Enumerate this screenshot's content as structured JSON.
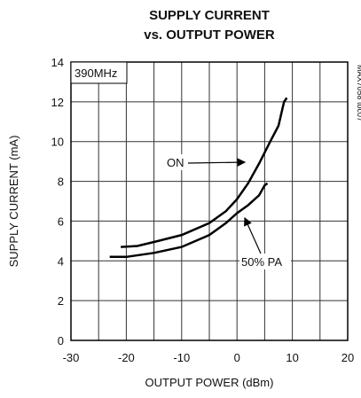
{
  "chart_data": {
    "type": "line",
    "title": "SUPPLY CURRENT",
    "subtitle": "vs. OUTPUT POWER",
    "x_label": "OUTPUT POWER (dBm)",
    "y_label": "SUPPLY CURRENT (mA)",
    "annotations": [
      "390MHz",
      "MAX7058 toc07"
    ],
    "series": [
      {
        "name": "ON",
        "color": "#000000",
        "x": [
          -21,
          -18,
          -15,
          -10,
          -5,
          -2,
          0,
          2,
          4,
          6,
          7.5,
          8.5,
          9
        ],
        "values": [
          4.7,
          4.75,
          4.95,
          5.3,
          5.9,
          6.5,
          7.1,
          7.9,
          8.9,
          10,
          10.8,
          12,
          12.2
        ]
      },
      {
        "name": "50% PA",
        "color": "#000000",
        "x": [
          -23,
          -20,
          -15,
          -10,
          -5,
          -2,
          0,
          2,
          4,
          5,
          5.5
        ],
        "values": [
          4.2,
          4.2,
          4.4,
          4.7,
          5.3,
          5.9,
          6.4,
          6.8,
          7.3,
          7.8,
          7.9
        ]
      }
    ],
    "xlim": [
      -30,
      20
    ],
    "xticks": [
      -30,
      -20,
      -10,
      0,
      10,
      20
    ],
    "x_minor_grid": [
      -25,
      -15,
      -5,
      5,
      15
    ],
    "ylim": [
      0,
      14
    ],
    "yticks": [
      0,
      2,
      4,
      6,
      8,
      10,
      12,
      14
    ],
    "grid": true
  }
}
